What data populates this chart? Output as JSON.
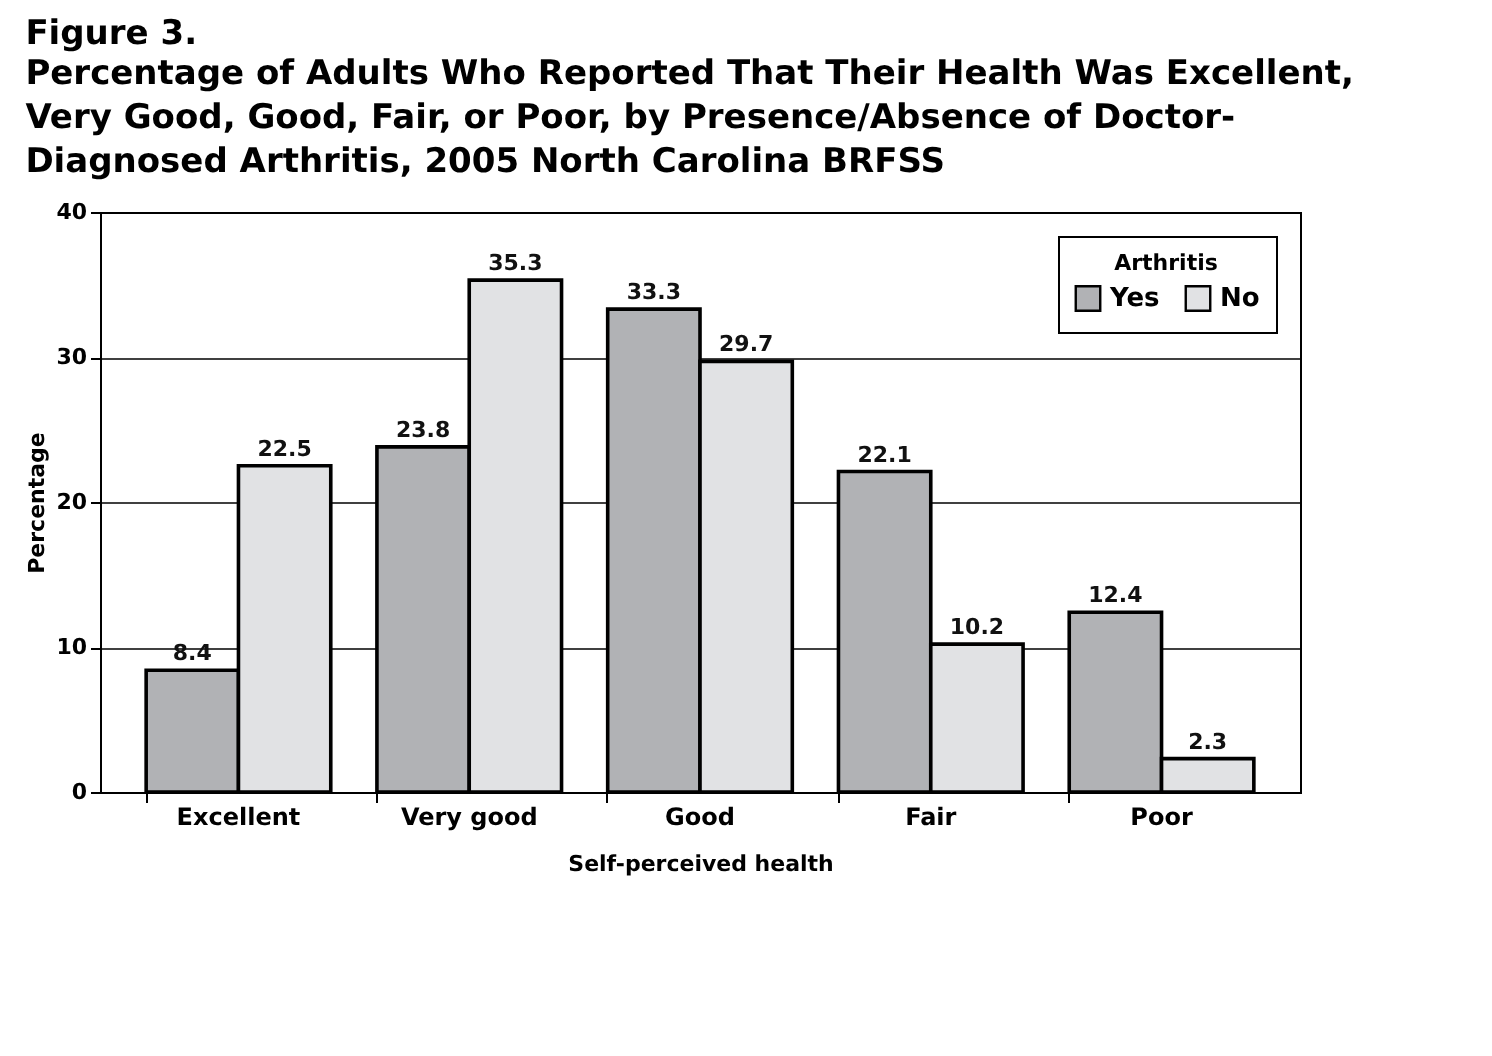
{
  "chart_data": {
    "type": "bar",
    "title": "Figure 3.",
    "subtitle": "Percentage of Adults Who Reported That Their Health Was Excellent,\nVery Good, Good, Fair, or Poor, by Presence/Absence of Doctor-\nDiagnosed Arthritis, 2005 North Carolina BRFSS",
    "xlabel": "Self-perceived health",
    "ylabel": "Percentage",
    "legend_title": "Arthritis",
    "legend": "top right",
    "categories": [
      "Excellent",
      "Very good",
      "Good",
      "Fair",
      "Poor"
    ],
    "series": [
      {
        "name": "Yes",
        "color": "#b1b2b5",
        "values": [
          8.4,
          23.8,
          33.3,
          22.1,
          12.4
        ]
      },
      {
        "name": "No",
        "color": "#e1e2e4",
        "values": [
          22.5,
          35.3,
          29.7,
          10.2,
          2.3
        ]
      }
    ],
    "ylim": [
      0,
      40
    ],
    "yticks": [
      0,
      10,
      20,
      30,
      40
    ],
    "grid": "y",
    "data_labels": true
  }
}
